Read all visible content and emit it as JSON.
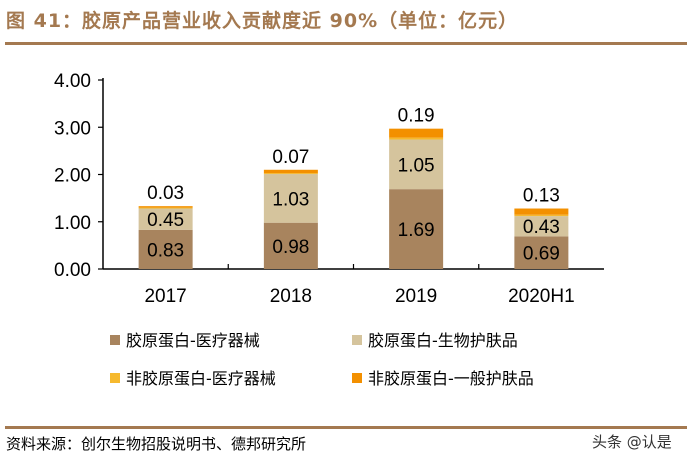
{
  "title": "图 41：胶原产品营业收入贡献度近 90%（单位：亿元）",
  "source": "资料来源：创尔生物招股说明书、德邦研究所",
  "watermark": "头条 @认是",
  "chart_data": {
    "type": "bar",
    "stacked": true,
    "title": "",
    "xlabel": "",
    "ylabel": "",
    "ylim": [
      0,
      4
    ],
    "yticks": [
      "0.00",
      "1.00",
      "2.00",
      "3.00",
      "4.00"
    ],
    "grid": false,
    "legend_position": "bottom",
    "categories": [
      "2017",
      "2018",
      "2019",
      "2020H1"
    ],
    "series": [
      {
        "name": "胶原蛋白-医疗器械",
        "color": "#A8845E",
        "values": [
          0.83,
          0.98,
          1.69,
          0.69
        ],
        "labels": [
          "0.83",
          "0.98",
          "1.69",
          "0.69"
        ]
      },
      {
        "name": "胶原蛋白-生物护肤品",
        "color": "#D5C49D",
        "values": [
          0.45,
          1.03,
          1.05,
          0.43
        ],
        "labels": [
          "0.45",
          "1.03",
          "1.05",
          "0.43"
        ]
      },
      {
        "name": "非胶原蛋白-医疗器械",
        "color": "#F6B92E",
        "values": [
          0.02,
          0.02,
          0.04,
          0.03
        ],
        "labels": []
      },
      {
        "name": "非胶原蛋白-一般护肤品",
        "color": "#F39000",
        "values": [
          0.03,
          0.07,
          0.19,
          0.13
        ],
        "labels": [
          "0.03",
          "0.07",
          "0.19",
          "0.13"
        ]
      }
    ]
  }
}
